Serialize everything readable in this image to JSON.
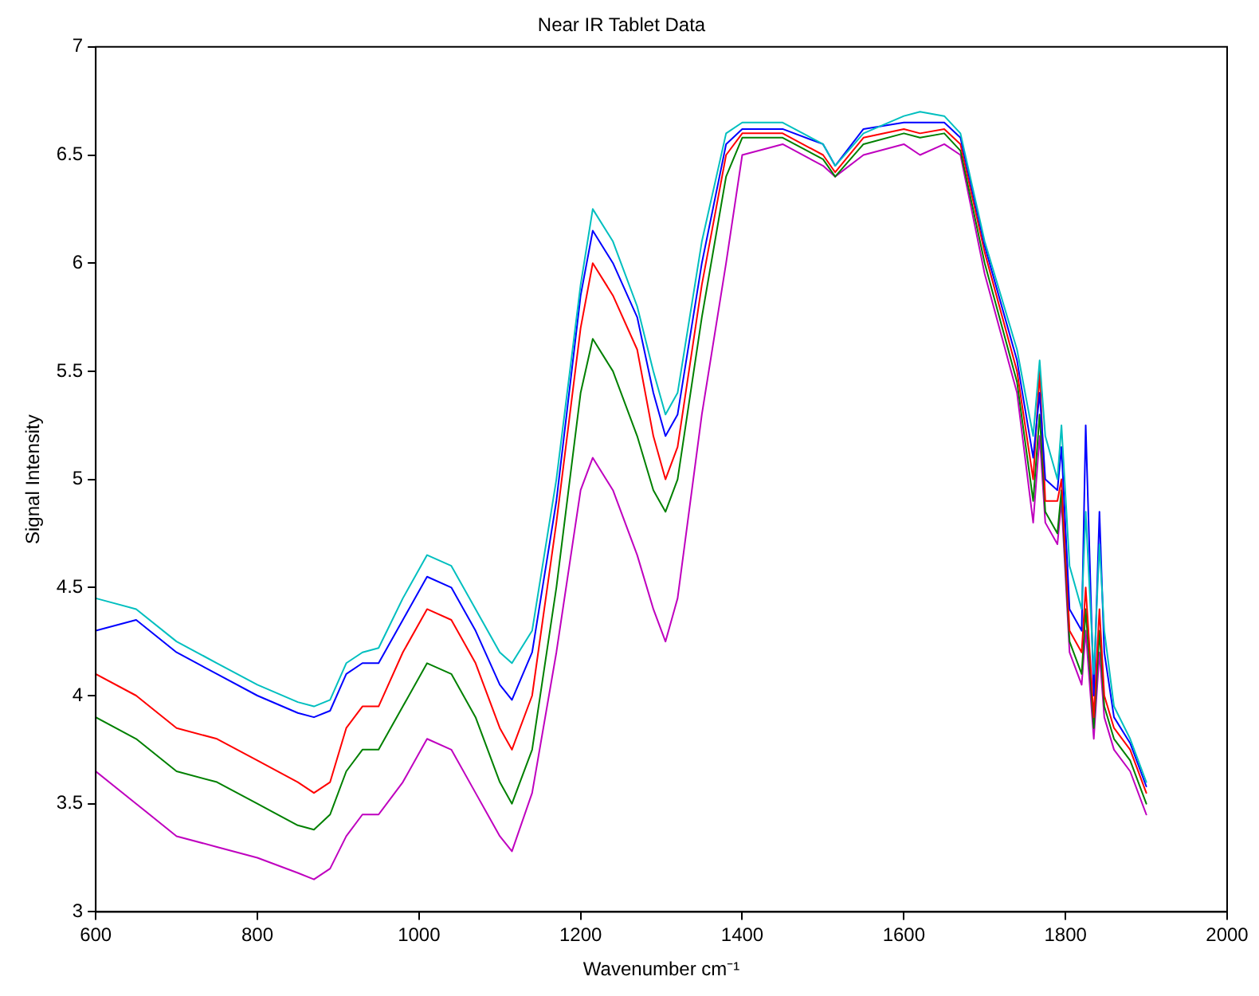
{
  "chart_data": {
    "type": "line",
    "title": "Near IR Tablet Data",
    "xlabel": "Wavenumber cm⁻¹",
    "ylabel": "Signal Intensity",
    "x": [
      600,
      650,
      700,
      750,
      800,
      850,
      870,
      890,
      910,
      930,
      950,
      980,
      1010,
      1040,
      1070,
      1100,
      1115,
      1140,
      1170,
      1200,
      1215,
      1240,
      1270,
      1290,
      1305,
      1320,
      1350,
      1380,
      1400,
      1450,
      1500,
      1515,
      1550,
      1600,
      1620,
      1650,
      1670,
      1700,
      1740,
      1760,
      1768,
      1775,
      1790,
      1795,
      1805,
      1820,
      1825,
      1835,
      1842,
      1848,
      1860,
      1880,
      1900
    ],
    "series": [
      {
        "color": "#00bfbf",
        "values": [
          4.45,
          4.4,
          4.25,
          4.15,
          4.05,
          3.97,
          3.95,
          3.98,
          4.15,
          4.2,
          4.22,
          4.45,
          4.65,
          4.6,
          4.4,
          4.2,
          4.15,
          4.3,
          5.0,
          5.9,
          6.25,
          6.1,
          5.8,
          5.5,
          5.3,
          5.4,
          6.1,
          6.6,
          6.65,
          6.65,
          6.55,
          6.45,
          6.6,
          6.68,
          6.7,
          6.68,
          6.6,
          6.1,
          5.6,
          5.2,
          5.55,
          5.2,
          5.0,
          5.25,
          4.6,
          4.4,
          4.85,
          4.1,
          4.7,
          4.3,
          3.95,
          3.8,
          3.6
        ]
      },
      {
        "color": "#0000ff",
        "values": [
          4.3,
          4.35,
          4.2,
          4.1,
          4.0,
          3.92,
          3.9,
          3.93,
          4.1,
          4.15,
          4.15,
          4.35,
          4.55,
          4.5,
          4.3,
          4.05,
          3.98,
          4.2,
          4.9,
          5.85,
          6.15,
          6.0,
          5.75,
          5.4,
          5.2,
          5.3,
          6.0,
          6.55,
          6.62,
          6.62,
          6.55,
          6.45,
          6.62,
          6.65,
          6.65,
          6.65,
          6.58,
          6.08,
          5.55,
          5.1,
          5.4,
          5.0,
          4.95,
          5.15,
          4.4,
          4.3,
          5.25,
          4.0,
          4.85,
          4.2,
          3.9,
          3.78,
          3.58
        ]
      },
      {
        "color": "#ff0000",
        "values": [
          4.1,
          4.0,
          3.85,
          3.8,
          3.7,
          3.6,
          3.55,
          3.6,
          3.85,
          3.95,
          3.95,
          4.2,
          4.4,
          4.35,
          4.15,
          3.85,
          3.75,
          4.0,
          4.8,
          5.7,
          6.0,
          5.85,
          5.6,
          5.2,
          5.0,
          5.15,
          5.9,
          6.5,
          6.6,
          6.6,
          6.5,
          6.42,
          6.58,
          6.62,
          6.6,
          6.62,
          6.55,
          6.05,
          5.5,
          5.0,
          5.5,
          4.9,
          4.9,
          5.0,
          4.3,
          4.2,
          4.5,
          3.9,
          4.4,
          4.0,
          3.85,
          3.75,
          3.55
        ]
      },
      {
        "color": "#008000",
        "values": [
          3.9,
          3.8,
          3.65,
          3.6,
          3.5,
          3.4,
          3.38,
          3.45,
          3.65,
          3.75,
          3.75,
          3.95,
          4.15,
          4.1,
          3.9,
          3.6,
          3.5,
          3.75,
          4.5,
          5.4,
          5.65,
          5.5,
          5.2,
          4.95,
          4.85,
          5.0,
          5.75,
          6.4,
          6.58,
          6.58,
          6.48,
          6.4,
          6.55,
          6.6,
          6.58,
          6.6,
          6.52,
          6.0,
          5.45,
          4.9,
          5.3,
          4.85,
          4.75,
          4.95,
          4.25,
          4.1,
          4.4,
          3.85,
          4.3,
          3.95,
          3.8,
          3.7,
          3.5
        ]
      },
      {
        "color": "#bf00bf",
        "values": [
          3.65,
          3.5,
          3.35,
          3.3,
          3.25,
          3.18,
          3.15,
          3.2,
          3.35,
          3.45,
          3.45,
          3.6,
          3.8,
          3.75,
          3.55,
          3.35,
          3.28,
          3.55,
          4.2,
          4.95,
          5.1,
          4.95,
          4.65,
          4.4,
          4.25,
          4.45,
          5.3,
          6.0,
          6.5,
          6.55,
          6.45,
          6.4,
          6.5,
          6.55,
          6.5,
          6.55,
          6.5,
          5.95,
          5.4,
          4.8,
          5.2,
          4.8,
          4.7,
          4.9,
          4.2,
          4.05,
          4.3,
          3.8,
          4.2,
          3.9,
          3.75,
          3.65,
          3.45
        ]
      }
    ],
    "xlim": [
      600,
      2000
    ],
    "xticks": [
      600,
      800,
      1000,
      1200,
      1400,
      1600,
      1800,
      2000
    ],
    "ylim": [
      3,
      7
    ],
    "yticks": [
      3,
      3.5,
      4,
      4.5,
      5,
      5.5,
      6,
      6.5,
      7
    ],
    "grid": false,
    "legend": false,
    "marker": "none",
    "line_style": "solid"
  }
}
